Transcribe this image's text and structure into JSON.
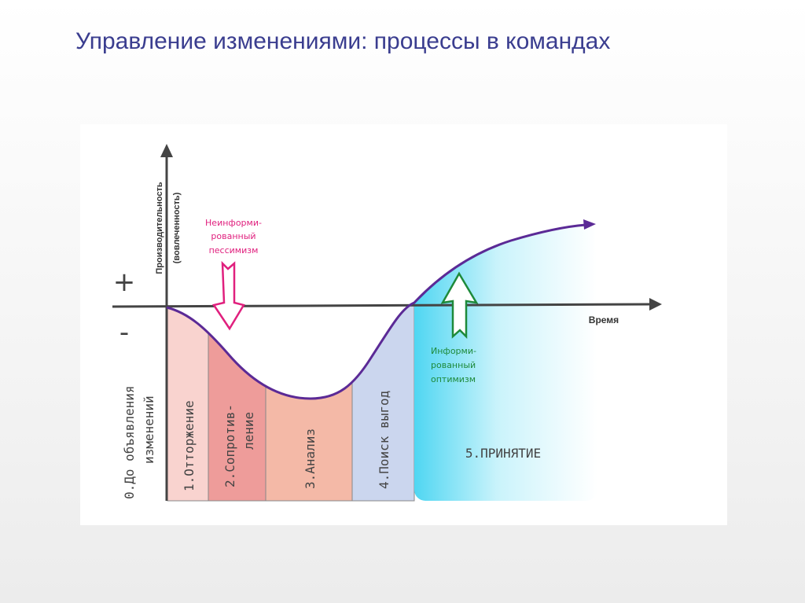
{
  "title": "Управление изменениями: процессы в командах",
  "diagram": {
    "y_axis_label_line1": "Производительность",
    "y_axis_label_line2": "(вовлеченность)",
    "x_axis_label": "Время",
    "plus_sign": "+",
    "minus_sign": "-",
    "stages": [
      {
        "line1": "0.До объявления",
        "line2": "изменений",
        "color": "#ffffff"
      },
      {
        "line1": "1.Отторжение",
        "line2": "",
        "color": "#f9d3cf"
      },
      {
        "line1": "2.Сопротив-",
        "line2": "ление",
        "color": "#ee9c9a"
      },
      {
        "line1": "3.Анализ",
        "line2": "",
        "color": "#f4b9a7"
      },
      {
        "line1": "4.Поиск выгод",
        "line2": "",
        "color": "#cbd6ee"
      },
      {
        "line1": "5.ПРИНЯТИЕ",
        "line2": "",
        "color": "#5fdcf4"
      }
    ],
    "pessimism": {
      "lines": [
        "Неинформи-",
        "рованный",
        "пессимизм"
      ],
      "color": "#e0207e"
    },
    "optimism": {
      "lines": [
        "Информи-",
        "рованный",
        "оптимизм"
      ],
      "color": "#1e8a3a"
    },
    "curve_color": "#5b2a96"
  }
}
